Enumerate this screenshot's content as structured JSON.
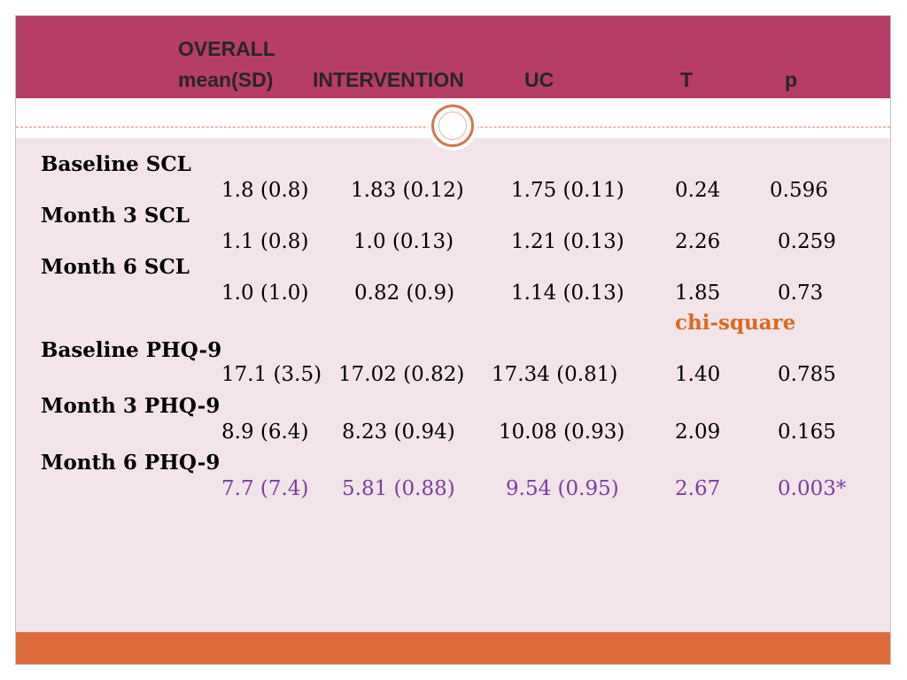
{
  "header": {
    "line1": "OVERALL",
    "col_overall": "mean(SD)",
    "col_intervention": "INTERVENTION",
    "col_uc": "UC",
    "col_t": "T",
    "col_p": "p"
  },
  "rows": [
    {
      "label": "Baseline SCL",
      "values": [
        "1.8 (0.8)",
        "1.83 (0.12)",
        "1.75 (0.11)",
        "0.24",
        "0.596"
      ]
    },
    {
      "label": "Month 3 SCL",
      "values": [
        "1.1 (0.8)",
        "1.0 (0.13)",
        "1.21 (0.13)",
        "2.26",
        "0.259"
      ]
    },
    {
      "label": "Month 6 SCL",
      "values": [
        "1.0 (1.0)",
        "0.82 (0.9)",
        "1.14 (0.13)",
        "1.85",
        "0.73"
      ]
    },
    {
      "label": "Baseline PHQ-9",
      "values": [
        "17.1 (3.5)",
        "17.02 (0.82)",
        "17.34 (0.81)",
        "1.40",
        "0.785"
      ]
    },
    {
      "label": "Month 3 PHQ-9",
      "values": [
        "8.9 (6.4)",
        "8.23 (0.94)",
        "10.08 (0.93)",
        "2.09",
        "0.165"
      ]
    },
    {
      "label": "Month 6 PHQ-9",
      "values": [
        "7.7 (7.4)",
        "5.81 (0.88)",
        "9.54 (0.95)",
        "2.67",
        "0.003*"
      ]
    }
  ],
  "note": "chi-square",
  "colors": {
    "header_band": "#b63d67",
    "slide_background": "#f3e4ea",
    "footer_band": "#de6c3b",
    "highlight_text": "#7a3ea0",
    "note_text": "#d96a1e"
  }
}
